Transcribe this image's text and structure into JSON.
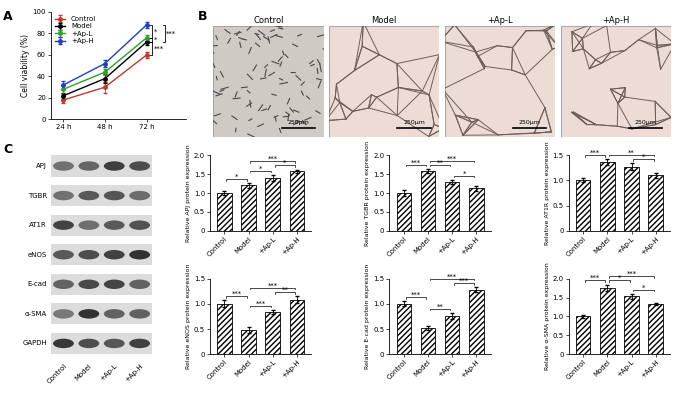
{
  "panel_labels": [
    "A",
    "B",
    "C"
  ],
  "chart_data": [
    {
      "type": "line",
      "categories": [
        "24 h",
        "48 h",
        "72 h"
      ],
      "ylabel": "Cell viability (%)",
      "ylim": [
        0,
        100
      ],
      "yticks": [
        0,
        20,
        40,
        60,
        80,
        100
      ],
      "legend": "upper left",
      "marker": "circle",
      "series": [
        {
          "name": "Control",
          "color": "#c0392b",
          "values": [
            18,
            30,
            60
          ],
          "errors": [
            3,
            5,
            3
          ]
        },
        {
          "name": "Model",
          "color": "#000000",
          "values": [
            22,
            38,
            72
          ],
          "errors": [
            3,
            4,
            3
          ]
        },
        {
          "name": "+Ap-L",
          "color": "#2ca02c",
          "values": [
            28,
            44,
            76
          ],
          "errors": [
            4,
            3,
            3
          ]
        },
        {
          "name": "+Ap-H",
          "color": "#1f3fbf",
          "values": [
            32,
            52,
            88
          ],
          "errors": [
            4,
            3,
            3
          ]
        }
      ],
      "significance": [
        {
          "between": [
            "Control",
            "Model"
          ],
          "text": "***"
        },
        {
          "between": [
            "Model",
            "+Ap-L"
          ],
          "text": "*"
        },
        {
          "between": [
            "+Ap-L",
            "+Ap-H"
          ],
          "text": "*"
        },
        {
          "between": [
            "Model",
            "+Ap-H"
          ],
          "text": "***"
        }
      ]
    },
    {
      "type": "bar",
      "categories": [
        "Control",
        "Model",
        "+Ap-L",
        "+Ap-H"
      ],
      "ylabel": "Relative APJ protein expression",
      "values": [
        1.0,
        1.2,
        1.4,
        1.58
      ],
      "errors": [
        0.05,
        0.06,
        0.08,
        0.04
      ],
      "ylim": [
        0,
        2.0
      ],
      "yticks": [
        0,
        0.5,
        1.0,
        1.5,
        2.0
      ],
      "significance": [
        {
          "between": [
            "Control",
            "Model"
          ],
          "text": "*"
        },
        {
          "between": [
            "Model",
            "+Ap-L"
          ],
          "text": "*"
        },
        {
          "between": [
            "+Ap-L",
            "+Ap-H"
          ],
          "text": "*"
        },
        {
          "between": [
            "Model",
            "+Ap-H"
          ],
          "text": "***"
        }
      ]
    },
    {
      "type": "bar",
      "categories": [
        "Control",
        "Model",
        "+Ap-L",
        "+Ap-H"
      ],
      "ylabel": "Relative TGBR protein expression",
      "values": [
        1.0,
        1.58,
        1.3,
        1.12
      ],
      "errors": [
        0.07,
        0.06,
        0.05,
        0.06
      ],
      "ylim": [
        0,
        2.0
      ],
      "yticks": [
        0,
        0.5,
        1.0,
        1.5,
        2.0
      ],
      "significance": [
        {
          "between": [
            "Control",
            "Model"
          ],
          "text": "***"
        },
        {
          "between": [
            "Model",
            "+Ap-L"
          ],
          "text": "**"
        },
        {
          "between": [
            "+Ap-L",
            "+Ap-H"
          ],
          "text": "*"
        },
        {
          "between": [
            "Model",
            "+Ap-H"
          ],
          "text": "***"
        }
      ]
    },
    {
      "type": "bar",
      "categories": [
        "Control",
        "Model",
        "+Ap-L",
        "+Ap-H"
      ],
      "ylabel": "Relative AT1R protein expression",
      "values": [
        1.0,
        1.36,
        1.27,
        1.1
      ],
      "errors": [
        0.04,
        0.06,
        0.07,
        0.05
      ],
      "ylim": [
        0,
        1.5
      ],
      "yticks": [
        0,
        0.5,
        1.0,
        1.5
      ],
      "significance": [
        {
          "between": [
            "Control",
            "Model"
          ],
          "text": "***"
        },
        {
          "between": [
            "+Ap-L",
            "+Ap-H"
          ],
          "text": "*"
        },
        {
          "between": [
            "Model",
            "+Ap-H"
          ],
          "text": "**"
        }
      ]
    },
    {
      "type": "bar",
      "categories": [
        "Control",
        "Model",
        "+Ap-L",
        "+Ap-H"
      ],
      "ylabel": "Relative eNOS protein expression",
      "values": [
        1.0,
        0.48,
        0.84,
        1.08
      ],
      "errors": [
        0.07,
        0.06,
        0.04,
        0.07
      ],
      "ylim": [
        0,
        1.5
      ],
      "yticks": [
        0,
        0.5,
        1.0,
        1.5
      ],
      "significance": [
        {
          "between": [
            "Control",
            "Model"
          ],
          "text": "***"
        },
        {
          "between": [
            "Model",
            "+Ap-L"
          ],
          "text": "***"
        },
        {
          "between": [
            "+Ap-L",
            "+Ap-H"
          ],
          "text": "**"
        },
        {
          "between": [
            "Model",
            "+Ap-H"
          ],
          "text": "***"
        }
      ]
    },
    {
      "type": "bar",
      "categories": [
        "Control",
        "Model",
        "+Ap-L",
        "+Ap-H"
      ],
      "ylabel": "Relative E-cad protein expression",
      "values": [
        1.0,
        0.52,
        0.76,
        1.28
      ],
      "errors": [
        0.05,
        0.04,
        0.06,
        0.05
      ],
      "ylim": [
        0,
        1.5
      ],
      "yticks": [
        0,
        0.5,
        1.0,
        1.5
      ],
      "significance": [
        {
          "between": [
            "Control",
            "Model"
          ],
          "text": "***"
        },
        {
          "between": [
            "Model",
            "+Ap-L"
          ],
          "text": "**"
        },
        {
          "between": [
            "+Ap-L",
            "+Ap-H"
          ],
          "text": "***"
        },
        {
          "between": [
            "Model",
            "+Ap-H"
          ],
          "text": "***"
        }
      ]
    },
    {
      "type": "bar",
      "categories": [
        "Control",
        "Model",
        "+Ap-L",
        "+Ap-H"
      ],
      "ylabel": "Relative α-SMA protein expression",
      "values": [
        1.0,
        1.76,
        1.53,
        1.33
      ],
      "errors": [
        0.05,
        0.08,
        0.06,
        0.03
      ],
      "ylim": [
        0,
        2.0
      ],
      "yticks": [
        0,
        0.5,
        1.0,
        1.5,
        2.0
      ],
      "significance": [
        {
          "between": [
            "Control",
            "Model"
          ],
          "text": "***"
        },
        {
          "between": [
            "Model",
            "+Ap-L"
          ],
          "text": "*"
        },
        {
          "between": [
            "+Ap-L",
            "+Ap-H"
          ],
          "text": "*"
        },
        {
          "between": [
            "Model",
            "+Ap-H"
          ],
          "text": "***"
        }
      ]
    }
  ],
  "images": {
    "titles": [
      "Control",
      "Model",
      "+Ap-L",
      "+Ap-H"
    ],
    "scale_bar": "250μm"
  },
  "blot": {
    "rows": [
      "APJ",
      "TGBR",
      "AT1R",
      "eNOS",
      "E-cad",
      "α-SMA",
      "GAPDH"
    ],
    "columns": [
      "Control",
      "Model",
      "+Ap-L",
      "+Ap-H"
    ]
  }
}
